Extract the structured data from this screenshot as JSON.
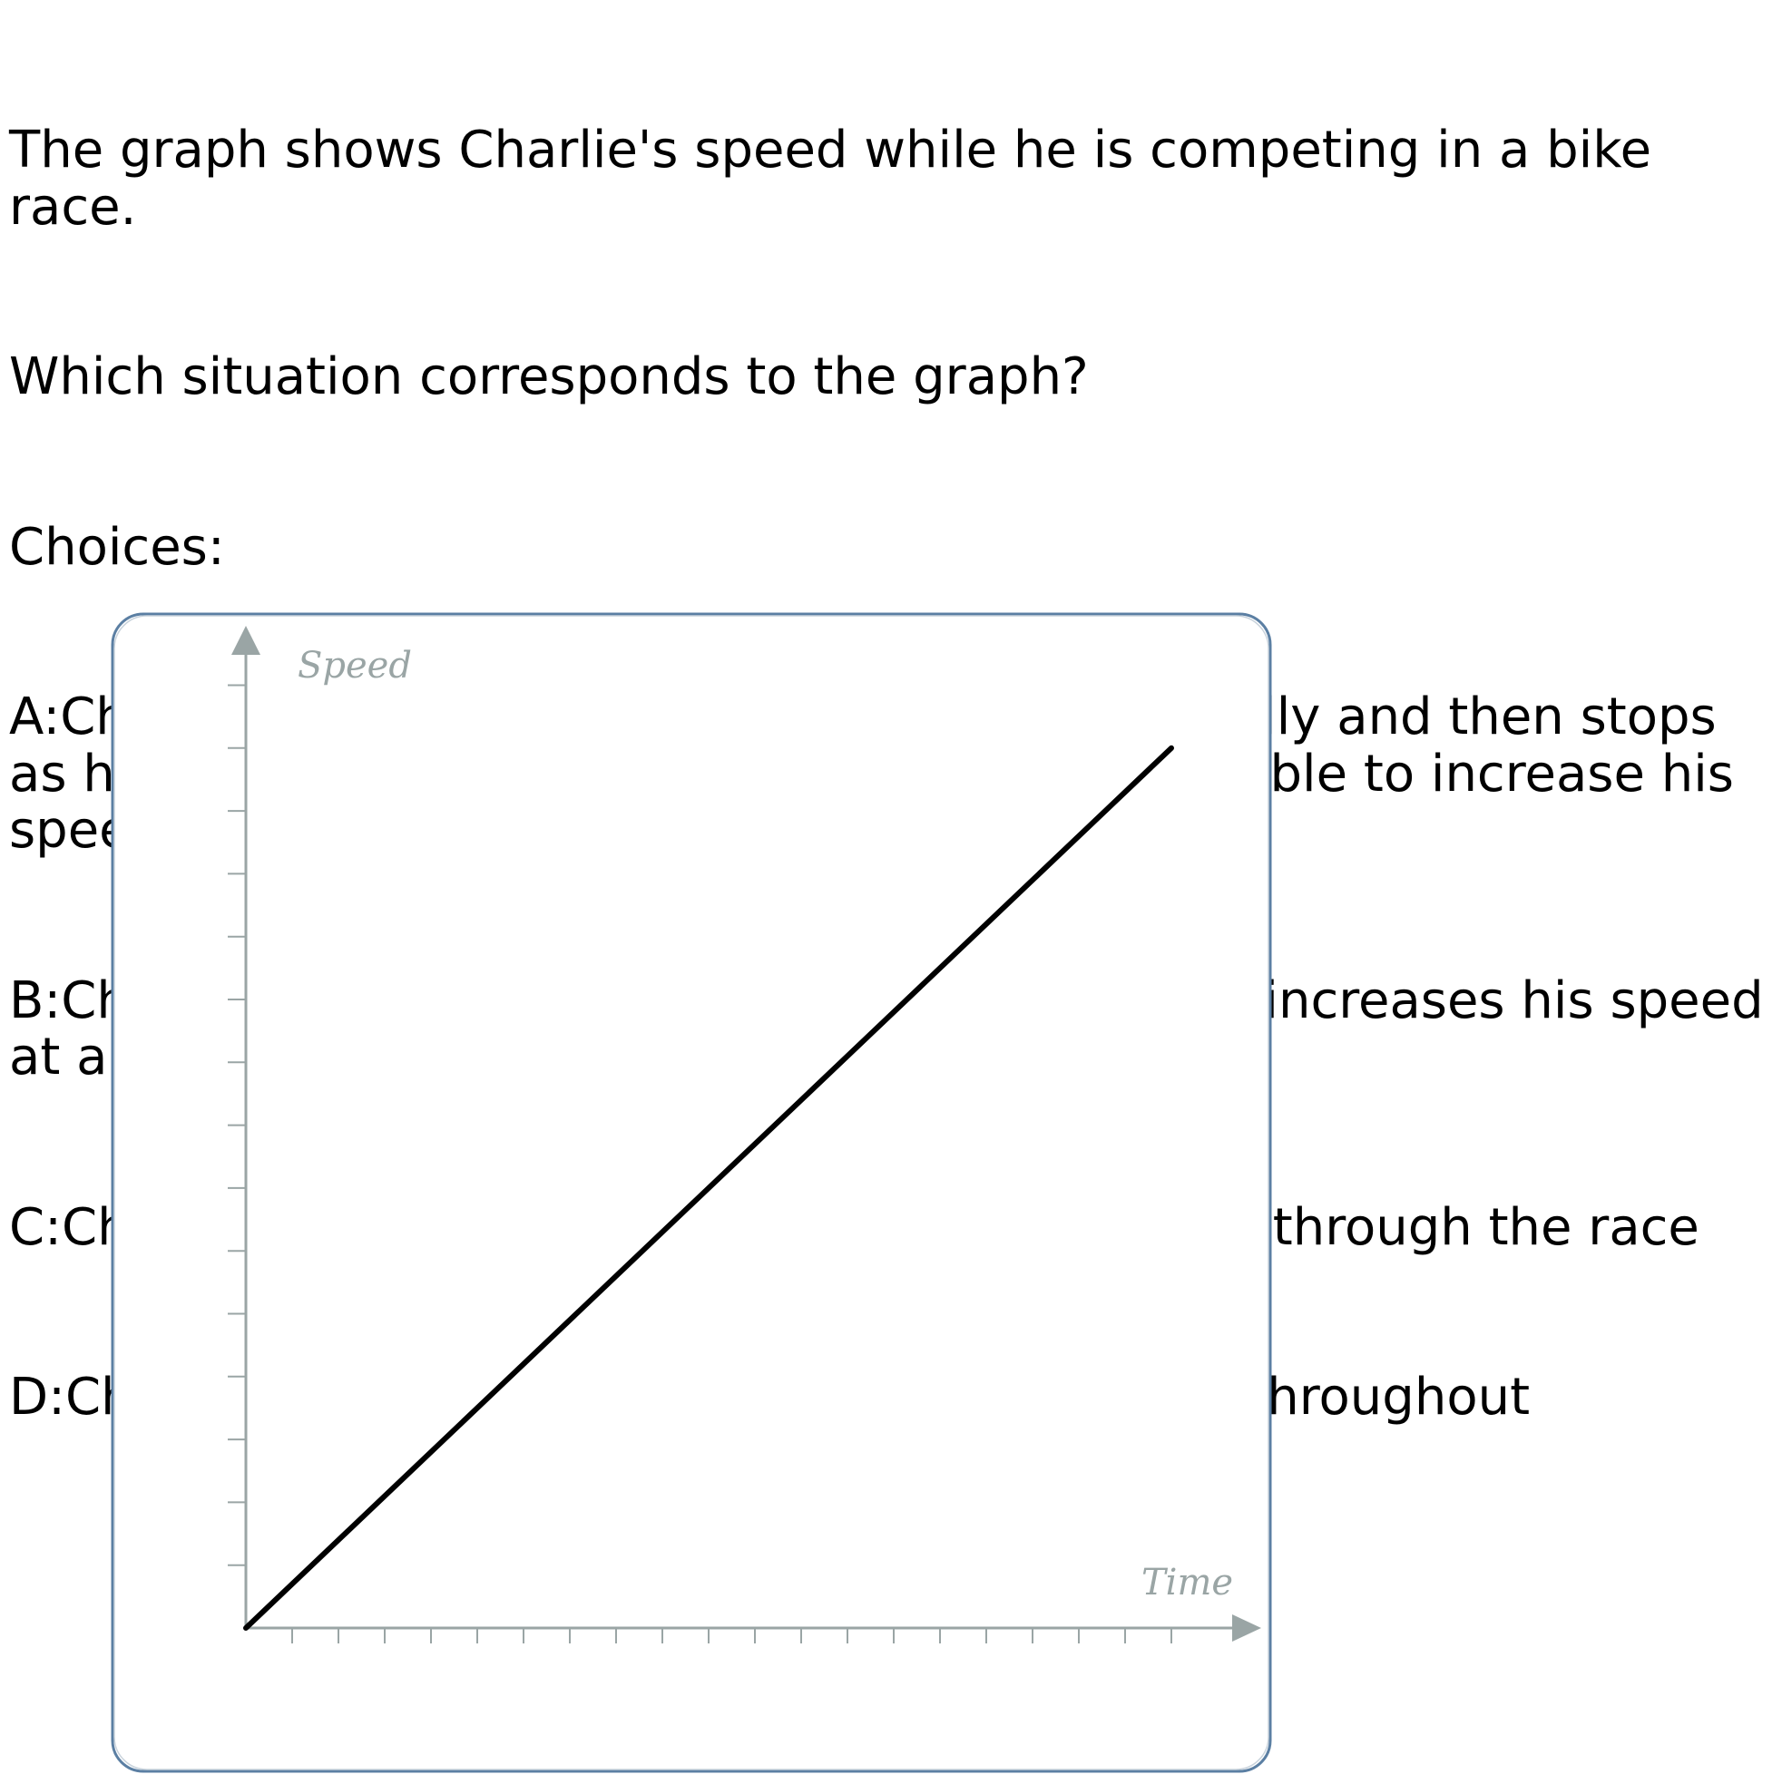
{
  "question": {
    "text": "The graph shows Charlie's speed while he is competing in a bike race.",
    "prompt": "Which situation corresponds to the graph?",
    "choices_header": "Choices:",
    "choices": [
      "A:Charlie starts off by increasing his pace gradually and then stops as he trips over a stick,but then recovers and is able to increase his speed steadily until the end of the race",
      "B:Charlie starts off at a constant speed and then increases his speed at a steady rate",
      "C:Charlie hits his maximum speed about halfway through the race",
      "D:Charlie increases his speed at a constant rate throughout"
    ]
  },
  "colors": {
    "frame": "#5b7fa3",
    "axis": "#9aa5a5",
    "line": "#000000"
  },
  "chart_data": {
    "type": "line",
    "xlabel": "Time",
    "ylabel": "Speed",
    "xlim": [
      0,
      22
    ],
    "ylim": [
      0,
      15
    ],
    "x_ticks_count": 20,
    "y_ticks_count": 15,
    "grid": false,
    "series": [
      {
        "x": [
          0,
          20
        ],
        "y": [
          0,
          14
        ]
      }
    ]
  }
}
